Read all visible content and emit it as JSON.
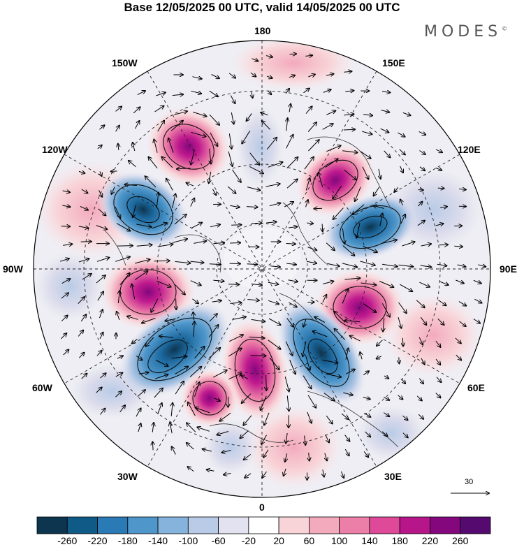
{
  "title": "Base 12/05/2025 00 UTC, valid 14/05/2025 00 UTC",
  "brand": "MODES",
  "brand_mark": "©",
  "longitude_labels": {
    "top": "180",
    "top_left": "150W",
    "top_right": "150E",
    "upper_left": "120W",
    "upper_right": "120E",
    "left": "90W",
    "right": "90E",
    "lower_left": "60W",
    "lower_right": "60E",
    "bottom_left": "30W",
    "bottom_right": "30E",
    "bottom": "0"
  },
  "reference_vector": {
    "label": "30"
  },
  "colorbar": {
    "ticks": [
      "-260",
      "-220",
      "-180",
      "-140",
      "-100",
      "-60",
      "-20",
      "20",
      "60",
      "100",
      "140",
      "180",
      "220",
      "260"
    ],
    "colors": [
      "#0d3550",
      "#0f5a86",
      "#2a7ab5",
      "#4f97cb",
      "#85b3dc",
      "#b9cbe6",
      "#e2e2f0",
      "#ffffff",
      "#f8d4d8",
      "#f3aabd",
      "#ec7fa7",
      "#de4a98",
      "#b7158a",
      "#84077d",
      "#540a6e"
    ]
  },
  "map": {
    "projection": "north-polar-stereographic",
    "anomaly_centers": [
      {
        "lon": 158,
        "value": 200
      },
      {
        "lon": -178,
        "value": -100
      },
      {
        "lon": -150,
        "value": 180
      },
      {
        "lon": -120,
        "value": -240
      },
      {
        "lon": -90,
        "value": 230
      },
      {
        "lon": -55,
        "value": -240
      },
      {
        "lon": -38,
        "value": 160
      },
      {
        "lon": -12,
        "value": 150
      },
      {
        "lon": 30,
        "value": -240
      },
      {
        "lon": 70,
        "value": 200
      },
      {
        "lon": 125,
        "value": -230
      },
      {
        "lon": 14,
        "value": 100
      }
    ]
  }
}
